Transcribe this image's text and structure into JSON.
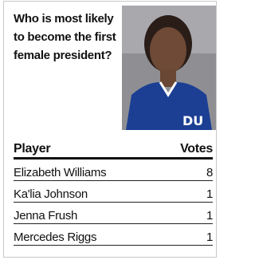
{
  "question": "Who is most likely to become the first female president?",
  "table": {
    "header": [
      "Player",
      "Votes"
    ],
    "rows": [
      [
        "Elizabeth Williams",
        "8"
      ],
      [
        "Ka'lia Johnson",
        "1"
      ],
      [
        "Jenna Frush",
        "1"
      ],
      [
        "Mercedes Riggs",
        "1"
      ]
    ]
  }
}
